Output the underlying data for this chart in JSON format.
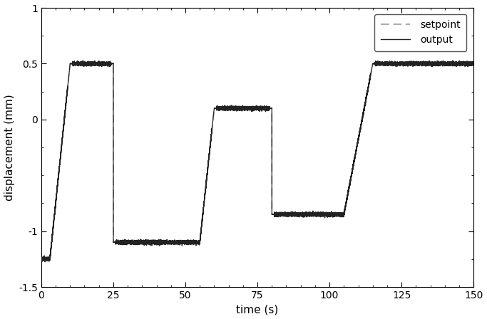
{
  "title": "",
  "xlabel": "time (s)",
  "ylabel": "displacement (mm)",
  "xlim": [
    0,
    150
  ],
  "ylim": [
    -1.5,
    1.0
  ],
  "yticks": [
    -1.5,
    -1.0,
    0.0,
    0.5,
    1.0
  ],
  "ytick_labels": [
    "-1.5",
    "-1",
    "0",
    "0.5",
    "1"
  ],
  "xticks": [
    0,
    25,
    50,
    75,
    100,
    125,
    150
  ],
  "setpoint_color": "#aaaaaa",
  "output_color": "#222222",
  "background_color": "#ffffff",
  "legend_labels": [
    "setpoint",
    "output"
  ],
  "segments": {
    "t": [
      0,
      3,
      10,
      25,
      25,
      55,
      60,
      80,
      80,
      105,
      115,
      150
    ],
    "y": [
      -1.25,
      -1.25,
      0.5,
      0.5,
      -1.1,
      -1.1,
      0.1,
      0.1,
      -0.85,
      -0.85,
      0.5,
      0.5
    ]
  },
  "noise_amplitude": 0.008,
  "noise_seed": 42
}
